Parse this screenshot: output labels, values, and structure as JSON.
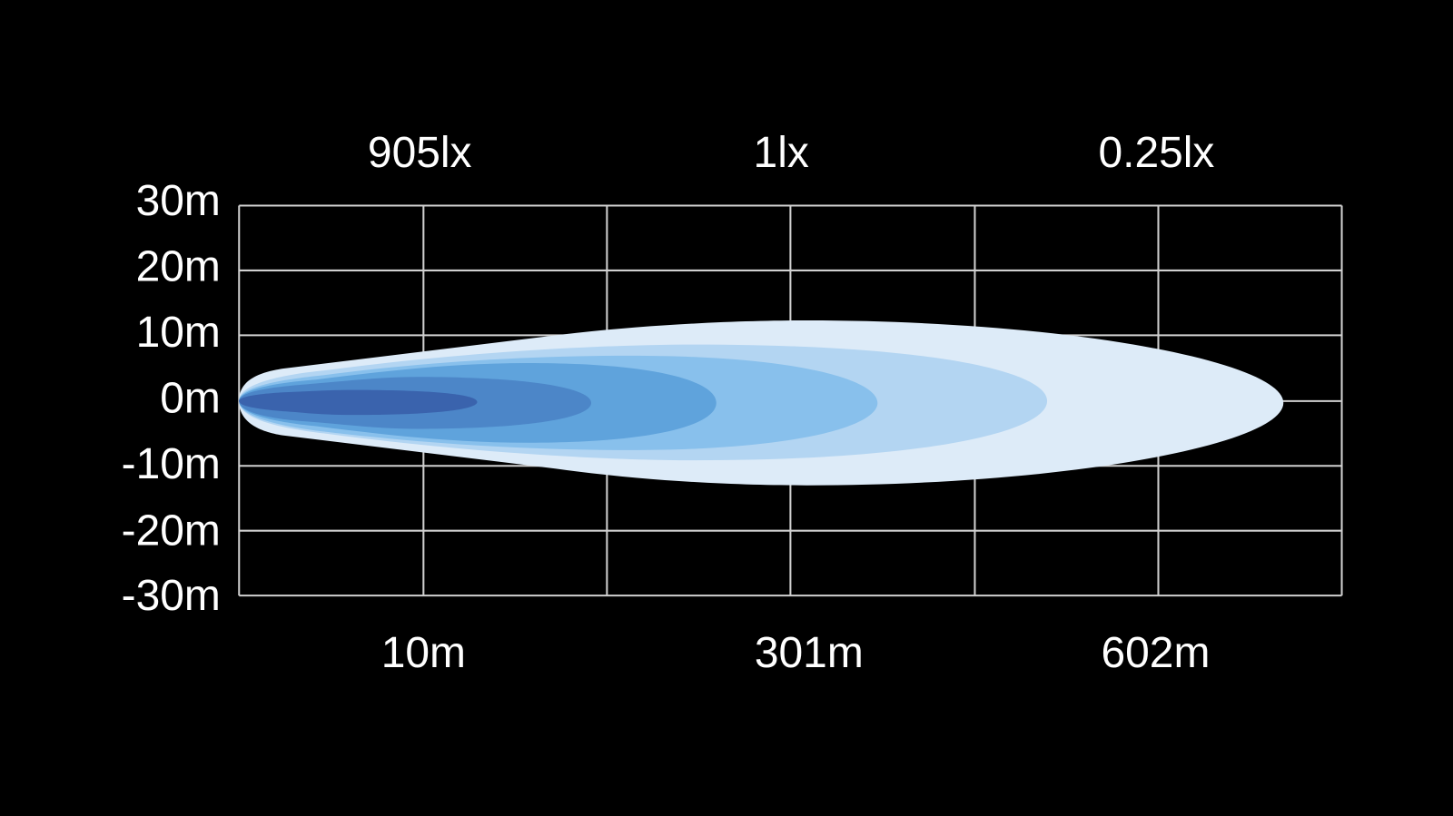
{
  "y_axis_labels": [
    "30m",
    "20m",
    "10m",
    "0m",
    "-10m",
    "-20m",
    "-30m"
  ],
  "lux_labels": [
    "905lx",
    "1lx",
    "0.25lx"
  ],
  "distance_labels": [
    "10m",
    "301m",
    "602m"
  ]
}
